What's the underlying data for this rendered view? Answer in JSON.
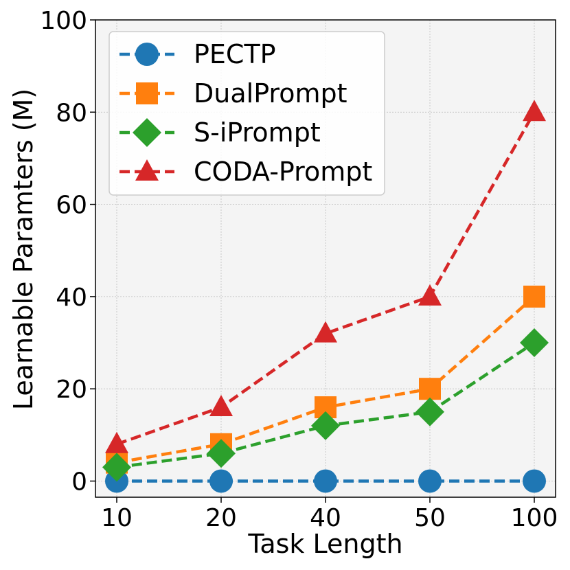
{
  "chart_data": {
    "type": "line",
    "title": "",
    "xlabel": "Task Length",
    "ylabel": "Learnable Paramters (M)",
    "categories": [
      "10",
      "20",
      "40",
      "50",
      "100"
    ],
    "ylim": [
      -3.5,
      100
    ],
    "yticks": [
      0,
      20,
      40,
      60,
      80,
      100
    ],
    "grid": true,
    "legend_position": "top-left",
    "series": [
      {
        "name": "PECTP",
        "color": "#1f77b4",
        "marker": "circle",
        "values": [
          0,
          0,
          0,
          0,
          0
        ]
      },
      {
        "name": "DualPrompt",
        "color": "#ff7f0e",
        "marker": "square",
        "values": [
          4,
          8,
          16,
          20,
          40
        ]
      },
      {
        "name": "S-iPrompt",
        "color": "#2ca02c",
        "marker": "diamond",
        "values": [
          3,
          6,
          12,
          15,
          30
        ]
      },
      {
        "name": "CODA-Prompt",
        "color": "#d62728",
        "marker": "triangle",
        "values": [
          8,
          16,
          32,
          40,
          80
        ]
      }
    ]
  }
}
